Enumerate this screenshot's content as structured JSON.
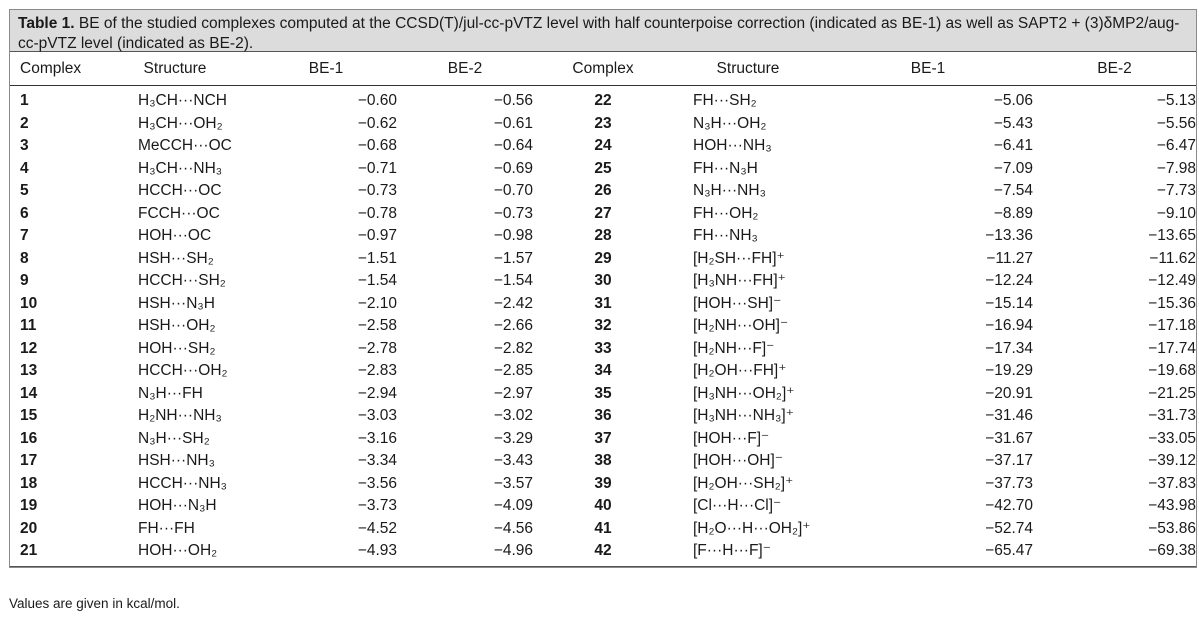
{
  "caption": {
    "label": "Table 1.",
    "text": "BE of the studied complexes computed at the CCSD(T)/jul-cc-pVTZ level with half counterpoise correction (indicated as BE-1) as well as SAPT2 + (3)δMP2/aug-cc-pVTZ level (indicated as BE-2)."
  },
  "headers": [
    "Complex",
    "Structure",
    "BE-1",
    "BE-2",
    "Complex",
    "Structure",
    "BE-1",
    "BE-2"
  ],
  "rows": [
    [
      "1",
      "H₃CH···NCH",
      "−0.60",
      "−0.56",
      "22",
      "FH···SH₂",
      "−5.06",
      "−5.13"
    ],
    [
      "2",
      "H₃CH···OH₂",
      "−0.62",
      "−0.61",
      "23",
      "N₃H···OH₂",
      "−5.43",
      "−5.56"
    ],
    [
      "3",
      "MeCCH···OC",
      "−0.68",
      "−0.64",
      "24",
      "HOH···NH₃",
      "−6.41",
      "−6.47"
    ],
    [
      "4",
      "H₃CH···NH₃",
      "−0.71",
      "−0.69",
      "25",
      "FH···N₃H",
      "−7.09",
      "−7.98"
    ],
    [
      "5",
      "HCCH···OC",
      "−0.73",
      "−0.70",
      "26",
      "N₃H···NH₃",
      "−7.54",
      "−7.73"
    ],
    [
      "6",
      "FCCH···OC",
      "−0.78",
      "−0.73",
      "27",
      "FH···OH₂",
      "−8.89",
      "−9.10"
    ],
    [
      "7",
      "HOH···OC",
      "−0.97",
      "−0.98",
      "28",
      "FH···NH₃",
      "−13.36",
      "−13.65"
    ],
    [
      "8",
      "HSH···SH₂",
      "−1.51",
      "−1.57",
      "29",
      "[H₂SH···FH]⁺",
      "−11.27",
      "−11.62"
    ],
    [
      "9",
      "HCCH···SH₂",
      "−1.54",
      "−1.54",
      "30",
      "[H₃NH···FH]⁺",
      "−12.24",
      "−12.49"
    ],
    [
      "10",
      "HSH···N₃H",
      "−2.10",
      "−2.42",
      "31",
      "[HOH···SH]⁻",
      "−15.14",
      "−15.36"
    ],
    [
      "11",
      "HSH···OH₂",
      "−2.58",
      "−2.66",
      "32",
      "[H₂NH···OH]⁻",
      "−16.94",
      "−17.18"
    ],
    [
      "12",
      "HOH···SH₂",
      "−2.78",
      "−2.82",
      "33",
      "[H₂NH···F]⁻",
      "−17.34",
      "−17.74"
    ],
    [
      "13",
      "HCCH···OH₂",
      "−2.83",
      "−2.85",
      "34",
      "[H₂OH···FH]⁺",
      "−19.29",
      "−19.68"
    ],
    [
      "14",
      "N₃H···FH",
      "−2.94",
      "−2.97",
      "35",
      "[H₃NH···OH₂]⁺",
      "−20.91",
      "−21.25"
    ],
    [
      "15",
      "H₂NH···NH₃",
      "−3.03",
      "−3.02",
      "36",
      "[H₃NH···NH₃]⁺",
      "−31.46",
      "−31.73"
    ],
    [
      "16",
      "N₃H···SH₂",
      "−3.16",
      "−3.29",
      "37",
      "[HOH···F]⁻",
      "−31.67",
      "−33.05"
    ],
    [
      "17",
      "HSH···NH₃",
      "−3.34",
      "−3.43",
      "38",
      "[HOH···OH]⁻",
      "−37.17",
      "−39.12"
    ],
    [
      "18",
      "HCCH···NH₃",
      "−3.56",
      "−3.57",
      "39",
      "[H₂OH···SH₂]⁺",
      "−37.73",
      "−37.83"
    ],
    [
      "19",
      "HOH···N₃H",
      "−3.73",
      "−4.09",
      "40",
      "[Cl···H···Cl]⁻",
      "−42.70",
      "−43.98"
    ],
    [
      "20",
      "FH···FH",
      "−4.52",
      "−4.56",
      "41",
      "[H₂O···H···OH₂]⁺",
      "−52.74",
      "−53.86"
    ],
    [
      "21",
      "HOH···OH₂",
      "−4.93",
      "−4.96",
      "42",
      "[F···H···F]⁻",
      "−65.47",
      "−69.38"
    ]
  ],
  "footnote": "Values are given in kcal/mol.",
  "colors": {
    "caption_bg": "#dcdcdc",
    "text": "#1a1a1a",
    "border": "#8a8a8a"
  }
}
